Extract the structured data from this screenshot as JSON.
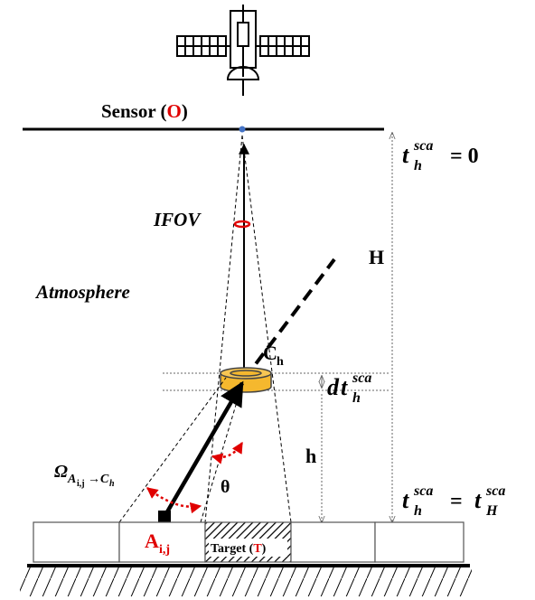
{
  "sensor_label": {
    "text": "Sensor (",
    "letter": "O",
    "close": ")"
  },
  "ifov": "IFOV",
  "atmosphere": "Atmosphere",
  "H": "H",
  "h": "h",
  "theta": "θ",
  "c_point": {
    "base": "C",
    "sub": "h"
  },
  "a_point": {
    "base": "A",
    "sub": "i,j"
  },
  "target": {
    "text": "Target (",
    "letter": "T",
    "close": ")"
  },
  "top_time": {
    "base": "t",
    "sub": "h",
    "sup": "sca",
    "rest": "= 0"
  },
  "layer_thickness": {
    "prefix": "d",
    "base": "t",
    "sub": "h",
    "sup": "sca"
  },
  "bottom_time": {
    "base": "t",
    "sub": "h",
    "sup": "sca",
    "eq": "=",
    "base2": "t",
    "sub2": "H",
    "sup2": "sca"
  },
  "solid_angle": {
    "base": "Ω",
    "sub": "A",
    "subsub": "i,j",
    "arrow": "→",
    "sub2": "C",
    "subsub2": "h"
  }
}
